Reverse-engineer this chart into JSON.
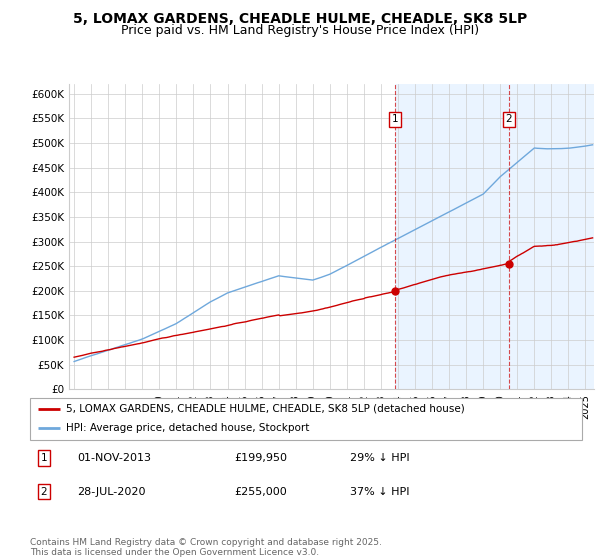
{
  "title": "5, LOMAX GARDENS, CHEADLE HULME, CHEADLE, SK8 5LP",
  "subtitle": "Price paid vs. HM Land Registry's House Price Index (HPI)",
  "ylabel_ticks": [
    "£0",
    "£50K",
    "£100K",
    "£150K",
    "£200K",
    "£250K",
    "£300K",
    "£350K",
    "£400K",
    "£450K",
    "£500K",
    "£550K",
    "£600K"
  ],
  "ytick_values": [
    0,
    50000,
    100000,
    150000,
    200000,
    250000,
    300000,
    350000,
    400000,
    450000,
    500000,
    550000,
    600000
  ],
  "hpi_color": "#6fa8dc",
  "price_color": "#cc0000",
  "legend_line1": "5, LOMAX GARDENS, CHEADLE HULME, CHEADLE, SK8 5LP (detached house)",
  "legend_line2": "HPI: Average price, detached house, Stockport",
  "footer": "Contains HM Land Registry data © Crown copyright and database right 2025.\nThis data is licensed under the Open Government Licence v3.0.",
  "xlim_start": 1994.7,
  "xlim_end": 2025.5,
  "ylim_min": 0,
  "ylim_max": 620000,
  "shaded_region_start": 2013.83,
  "background_color": "#ffffff",
  "grid_color": "#cccccc",
  "title_fontsize": 10,
  "subtitle_fontsize": 9,
  "marker1_x": 2013.83,
  "marker2_x": 2020.54,
  "marker1_price": 199950,
  "marker2_price": 255000
}
